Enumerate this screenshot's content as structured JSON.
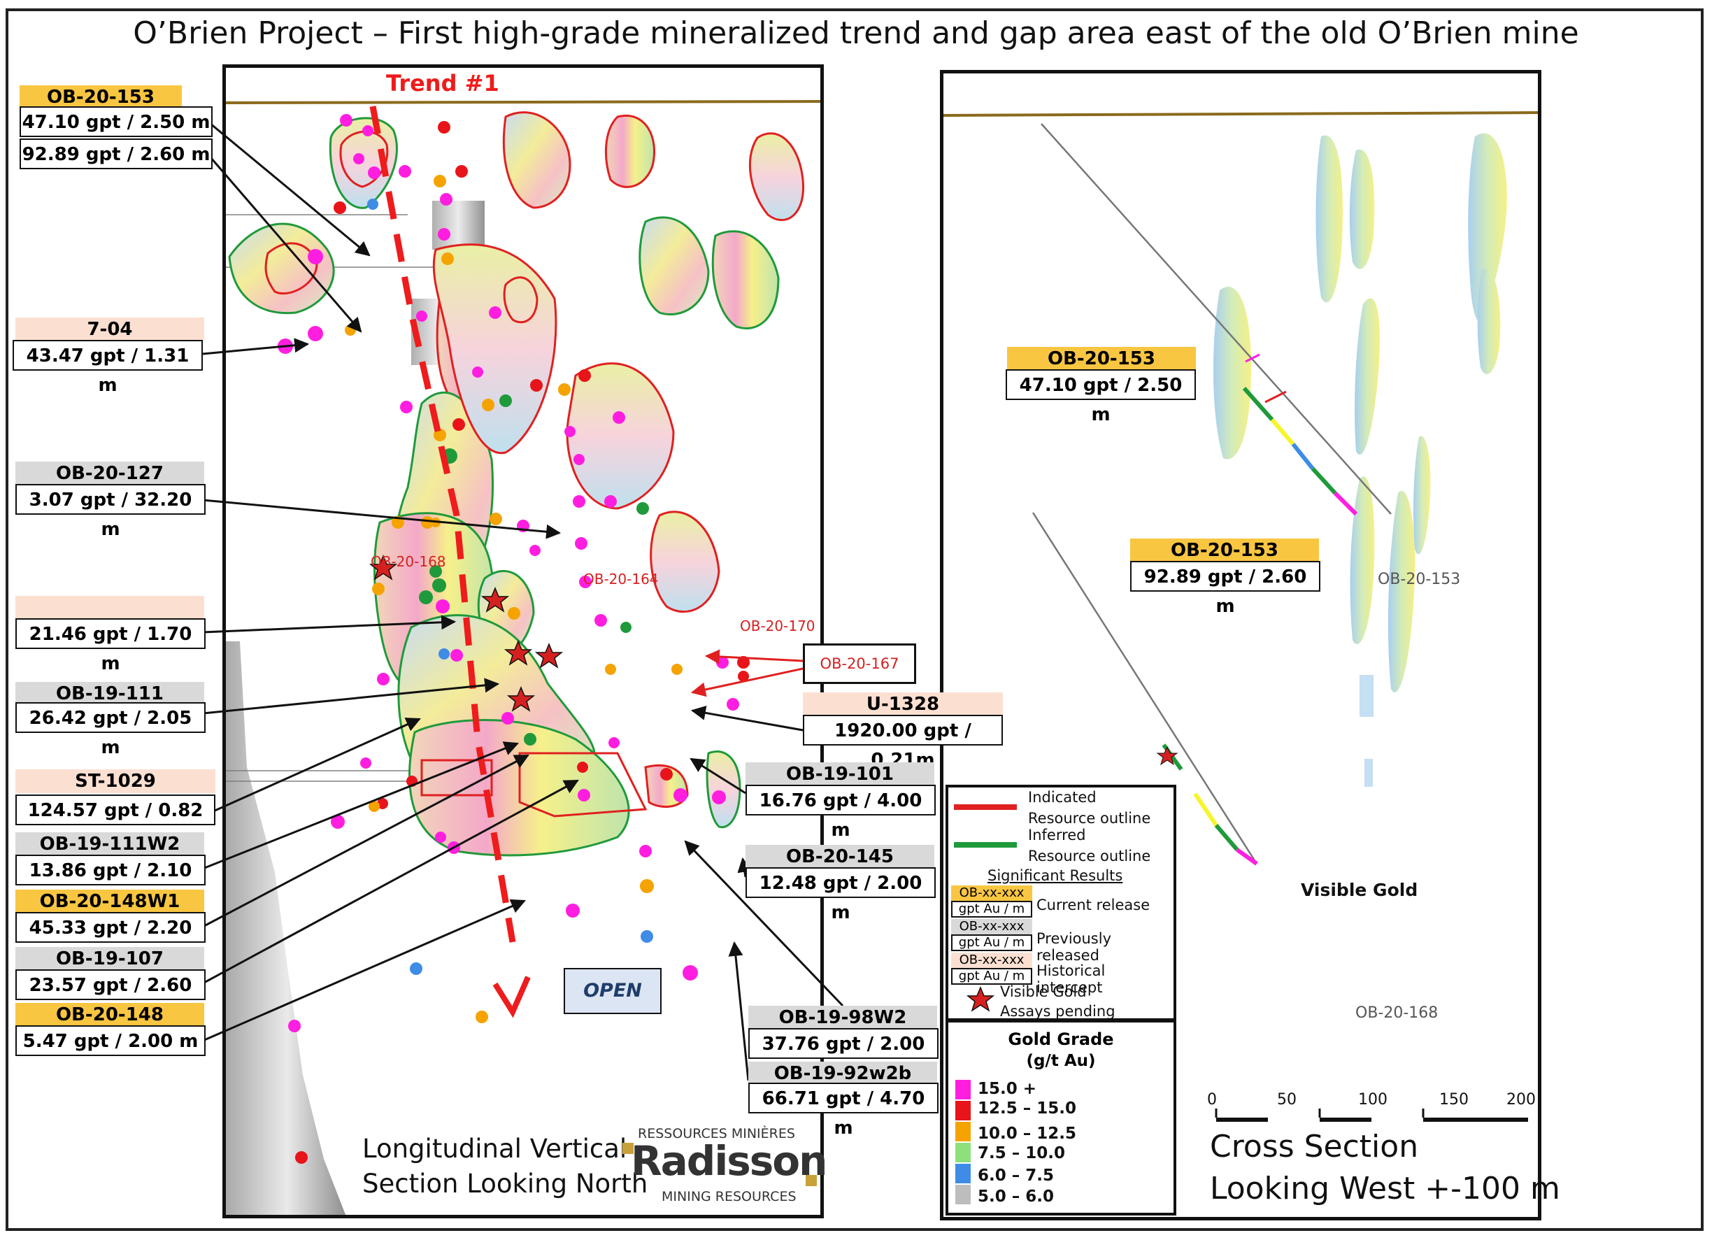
{
  "title": "O’Brien Project – First high-grade mineralized trend and gap area east of the old O’Brien mine",
  "trend_label": "Trend #1",
  "open_label": "OPEN",
  "map_labels": {
    "ob20168": "OB-20-168",
    "ob20164": "OB-20-164",
    "ob20170": "OB-20-170",
    "ob20167": "OB-20-167"
  },
  "callouts_left": [
    {
      "id": "OB-20-153",
      "kind": "current",
      "values": [
        "47.10 gpt / 2.50 m",
        "92.89 gpt / 2.60 m"
      ]
    },
    {
      "id": "7-04",
      "kind": "historical",
      "values": [
        "43.47 gpt / 1.31 m"
      ]
    },
    {
      "id": "OB-20-127",
      "kind": "previous",
      "values": [
        "3.07 gpt / 32.20 m"
      ]
    },
    {
      "id": "",
      "kind": "historical",
      "values": [
        "21.46 gpt / 1.70 m"
      ]
    },
    {
      "id": "OB-19-111",
      "kind": "previous",
      "values": [
        "26.42 gpt / 2.05 m"
      ]
    },
    {
      "id": "ST-1029",
      "kind": "historical",
      "values": [
        "124.57 gpt / 0.82 m"
      ]
    },
    {
      "id": "OB-19-111W2",
      "kind": "previous",
      "values": [
        "13.86 gpt / 2.10 m"
      ]
    },
    {
      "id": "OB-20-148W1",
      "kind": "current",
      "values": [
        "45.33 gpt / 2.20 m"
      ]
    },
    {
      "id": "OB-19-107",
      "kind": "previous",
      "values": [
        "23.57 gpt / 2.60 m"
      ]
    },
    {
      "id": "OB-20-148",
      "kind": "current",
      "values": [
        "5.47 gpt / 2.00 m"
      ]
    }
  ],
  "callouts_right": [
    {
      "id": "U-1328",
      "kind": "historical",
      "values": [
        "1920.00 gpt / 0.21m"
      ]
    },
    {
      "id": "OB-19-101",
      "kind": "previous",
      "values": [
        "16.76 gpt / 4.00 m"
      ]
    },
    {
      "id": "OB-20-145",
      "kind": "previous",
      "values": [
        "12.48 gpt / 2.00 m"
      ]
    },
    {
      "id": "OB-19-98W2",
      "kind": "previous",
      "values": [
        "37.76 gpt / 2.00 m"
      ]
    },
    {
      "id": "OB-19-92w2b",
      "kind": "previous",
      "values": [
        "66.71 gpt / 4.70 m"
      ]
    }
  ],
  "cross_callouts": [
    {
      "id": "OB-20-153",
      "kind": "current",
      "value": "47.10 gpt / 2.50 m"
    },
    {
      "id": "OB-20-153",
      "kind": "current",
      "value": "92.89 gpt / 2.60 m"
    }
  ],
  "cross_hole_labels": {
    "upper": "OB-20-153",
    "lower": "OB-20-168",
    "visible_gold": "Visible Gold"
  },
  "legend": {
    "indicated": "Indicated",
    "indicated_line2": "Resource outline",
    "inferred": "Inferred",
    "inferred_line2": "Resource outline",
    "significant": "Significant Results",
    "sample_id": "OB-xx-xxx",
    "sample_unit": "gpt Au / m",
    "current": "Current release",
    "previous": "Previously released",
    "historical": "Historical intercept",
    "visible_gold": "Visible Gold",
    "assays_pending": "Assays pending",
    "colors": {
      "indicated": "#e02020",
      "inferred": "#1f9a3a",
      "current": "#f9c642",
      "previous": "#d9d9d9",
      "historical": "#fbe0d2"
    }
  },
  "grade_legend": {
    "title": "Gold Grade",
    "unit": "(g/t Au)",
    "classes": [
      {
        "label": "15.0 +",
        "color": "#ff1ee0"
      },
      {
        "label": "12.5 – 15.0",
        "color": "#e8141a"
      },
      {
        "label": "10.0 – 12.5",
        "color": "#f5a300"
      },
      {
        "label": "7.5 – 10.0",
        "color": "#f6f52a"
      },
      {
        "label": "6.0 – 7.5",
        "color": "#3f8ce6"
      },
      {
        "label": "5.0 – 6.0",
        "color": "#bdbdbd"
      }
    ]
  },
  "scale_bar": {
    "ticks": [
      "0",
      "50",
      "100",
      "150",
      "200"
    ]
  },
  "caption_long": [
    "Longitudinal Vertical",
    "Section Looking North"
  ],
  "caption_cross": [
    "Cross Section",
    "Looking West +-100 m"
  ],
  "logo": {
    "top": "RESSOURCES MINIÈRES",
    "name": "Radisson",
    "bottom": "MINING RESOURCES"
  }
}
